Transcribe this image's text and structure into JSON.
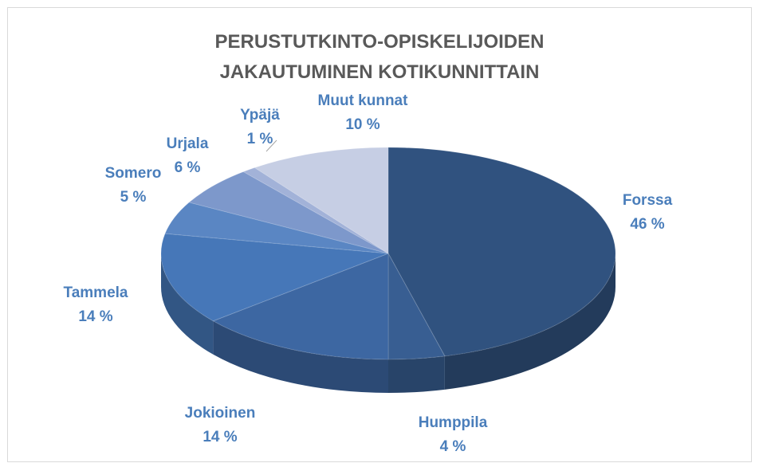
{
  "chart_data": {
    "type": "pie",
    "title": "PERUSTUTKINTO-OPISKELIJOIDEN JAKAUTUMINEN KOTIKUNNITTAIN",
    "categories": [
      "Forssa",
      "Humppila",
      "Jokioinen",
      "Tammela",
      "Somero",
      "Urjala",
      "Ypäjä",
      "Muut kunnat"
    ],
    "values": [
      46,
      4,
      14,
      14,
      5,
      6,
      1,
      10
    ],
    "value_labels": [
      "46 %",
      "4 %",
      "14 %",
      "14 %",
      "5 %",
      "6 %",
      "1 %",
      "10 %"
    ],
    "colors": [
      "#30527f",
      "#385e92",
      "#3d67a2",
      "#4677b8",
      "#5a86c3",
      "#7d98cb",
      "#a2b2d8",
      "#c6cee4"
    ]
  }
}
